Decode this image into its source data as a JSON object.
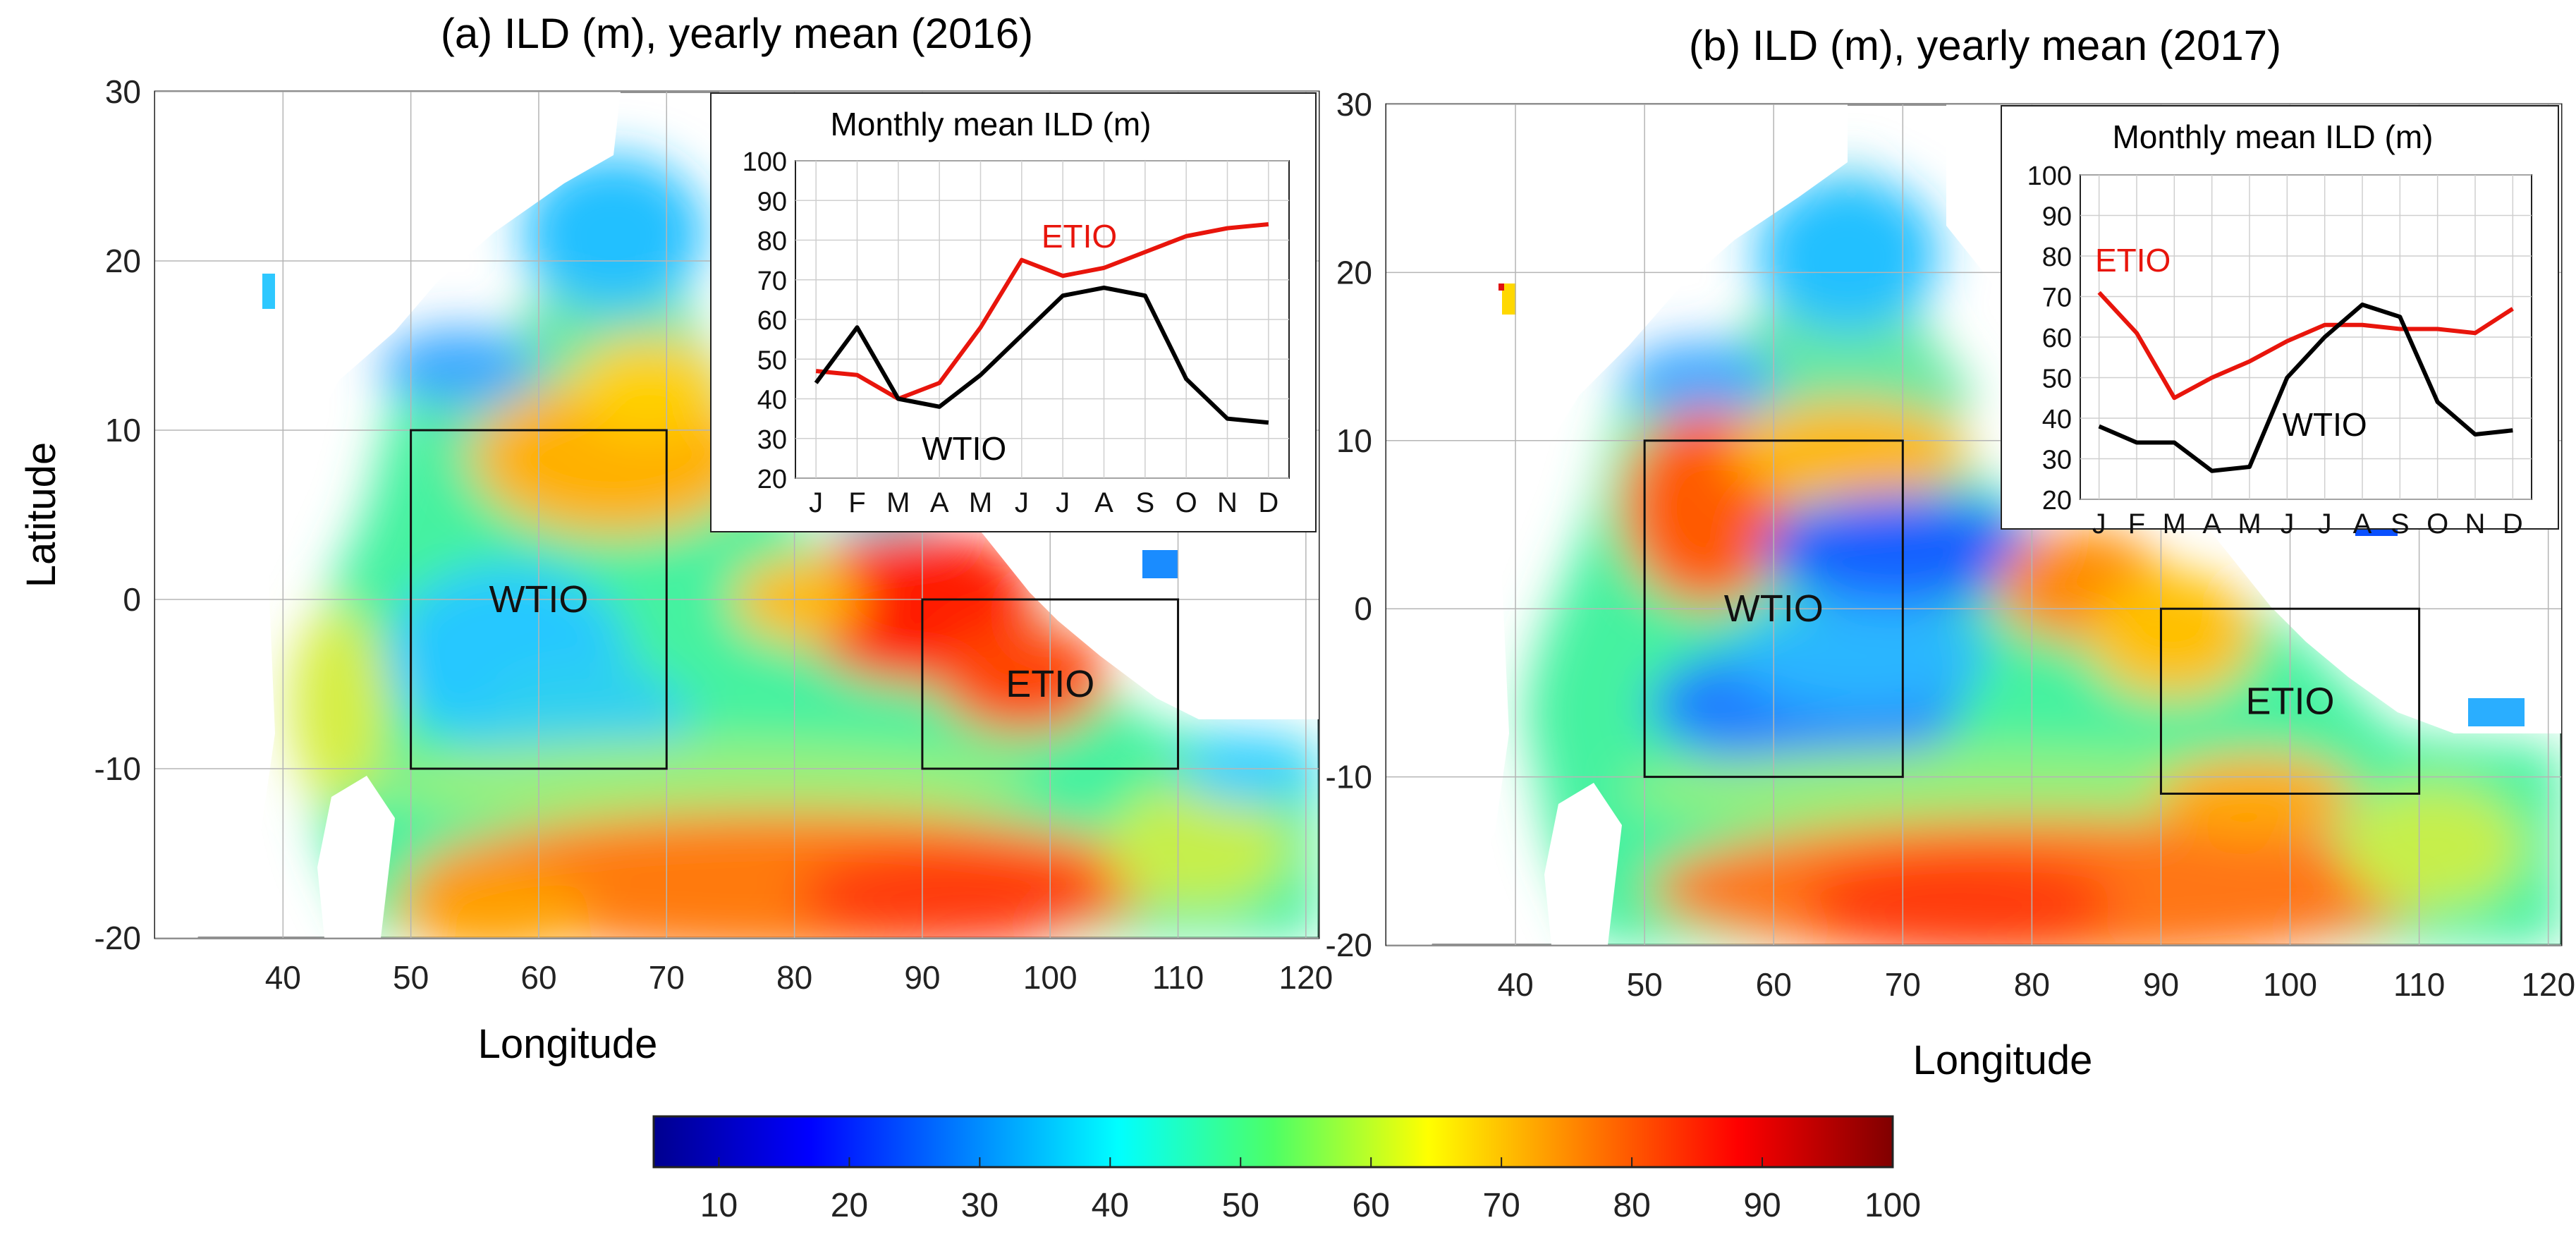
{
  "figure_panels": [
    "(a) ILD (m), yearly mean (2016)",
    "(b) ILD (m), yearly mean (2017)"
  ],
  "chart_data": [
    {
      "type": "heatmap",
      "title": "(a) ILD (m), yearly mean (2016)",
      "xlabel": "Longitude",
      "ylabel": "Latitude",
      "xlim": [
        30,
        121
      ],
      "ylim": [
        -20,
        30
      ],
      "xticks": [
        40,
        50,
        60,
        70,
        80,
        90,
        100,
        110,
        120
      ],
      "yticks": [
        30,
        20,
        10,
        0,
        -10,
        -20
      ],
      "grid": true,
      "regions": [
        {
          "name": "WTIO",
          "lon": [
            50,
            70
          ],
          "lat": [
            -10,
            10
          ]
        },
        {
          "name": "ETIO",
          "lon": [
            90,
            110
          ],
          "lat": [
            -10,
            0
          ]
        }
      ],
      "inset": {
        "type": "line",
        "title": "Monthly mean ILD (m)",
        "categories": [
          "J",
          "F",
          "M",
          "A",
          "M",
          "J",
          "J",
          "A",
          "S",
          "O",
          "N",
          "D"
        ],
        "ylim": [
          20,
          100
        ],
        "yticks": [
          20,
          30,
          40,
          50,
          60,
          70,
          80,
          90,
          100
        ],
        "series": [
          {
            "name": "ETIO",
            "color": "#e8150c",
            "values": [
              47,
              46,
              40,
              44,
              58,
              75,
              71,
              73,
              77,
              81,
              83,
              84
            ]
          },
          {
            "name": "WTIO",
            "color": "#000000",
            "values": [
              44,
              58,
              40,
              38,
              46,
              56,
              66,
              68,
              66,
              45,
              35,
              34
            ]
          }
        ]
      }
    },
    {
      "type": "heatmap",
      "title": "(b) ILD (m), yearly mean (2017)",
      "xlabel": "Longitude",
      "ylabel": "",
      "xlim": [
        30,
        121
      ],
      "ylim": [
        -20,
        30
      ],
      "xticks": [
        40,
        50,
        60,
        70,
        80,
        90,
        100,
        110,
        120
      ],
      "yticks": [
        30,
        20,
        10,
        0,
        -10,
        -20
      ],
      "grid": true,
      "regions": [
        {
          "name": "WTIO",
          "lon": [
            50,
            70
          ],
          "lat": [
            -10,
            10
          ]
        },
        {
          "name": "ETIO",
          "lon": [
            90,
            110
          ],
          "lat": [
            -11,
            0
          ]
        }
      ],
      "inset": {
        "type": "line",
        "title": "Monthly mean ILD (m)",
        "categories": [
          "J",
          "F",
          "M",
          "A",
          "M",
          "J",
          "J",
          "A",
          "S",
          "O",
          "N",
          "D"
        ],
        "ylim": [
          20,
          100
        ],
        "yticks": [
          20,
          30,
          40,
          50,
          60,
          70,
          80,
          90,
          100
        ],
        "series": [
          {
            "name": "ETIO",
            "color": "#e8150c",
            "values": [
              71,
              61,
              45,
              50,
              54,
              59,
              63,
              63,
              62,
              62,
              61,
              67
            ]
          },
          {
            "name": "WTIO",
            "color": "#000000",
            "values": [
              38,
              34,
              34,
              27,
              28,
              50,
              60,
              68,
              65,
              44,
              36,
              37
            ]
          }
        ]
      }
    }
  ],
  "colorbar": {
    "ticks": [
      10,
      20,
      30,
      40,
      50,
      60,
      70,
      80,
      90,
      100
    ],
    "range": [
      5,
      100
    ],
    "colormap": "jet"
  }
}
